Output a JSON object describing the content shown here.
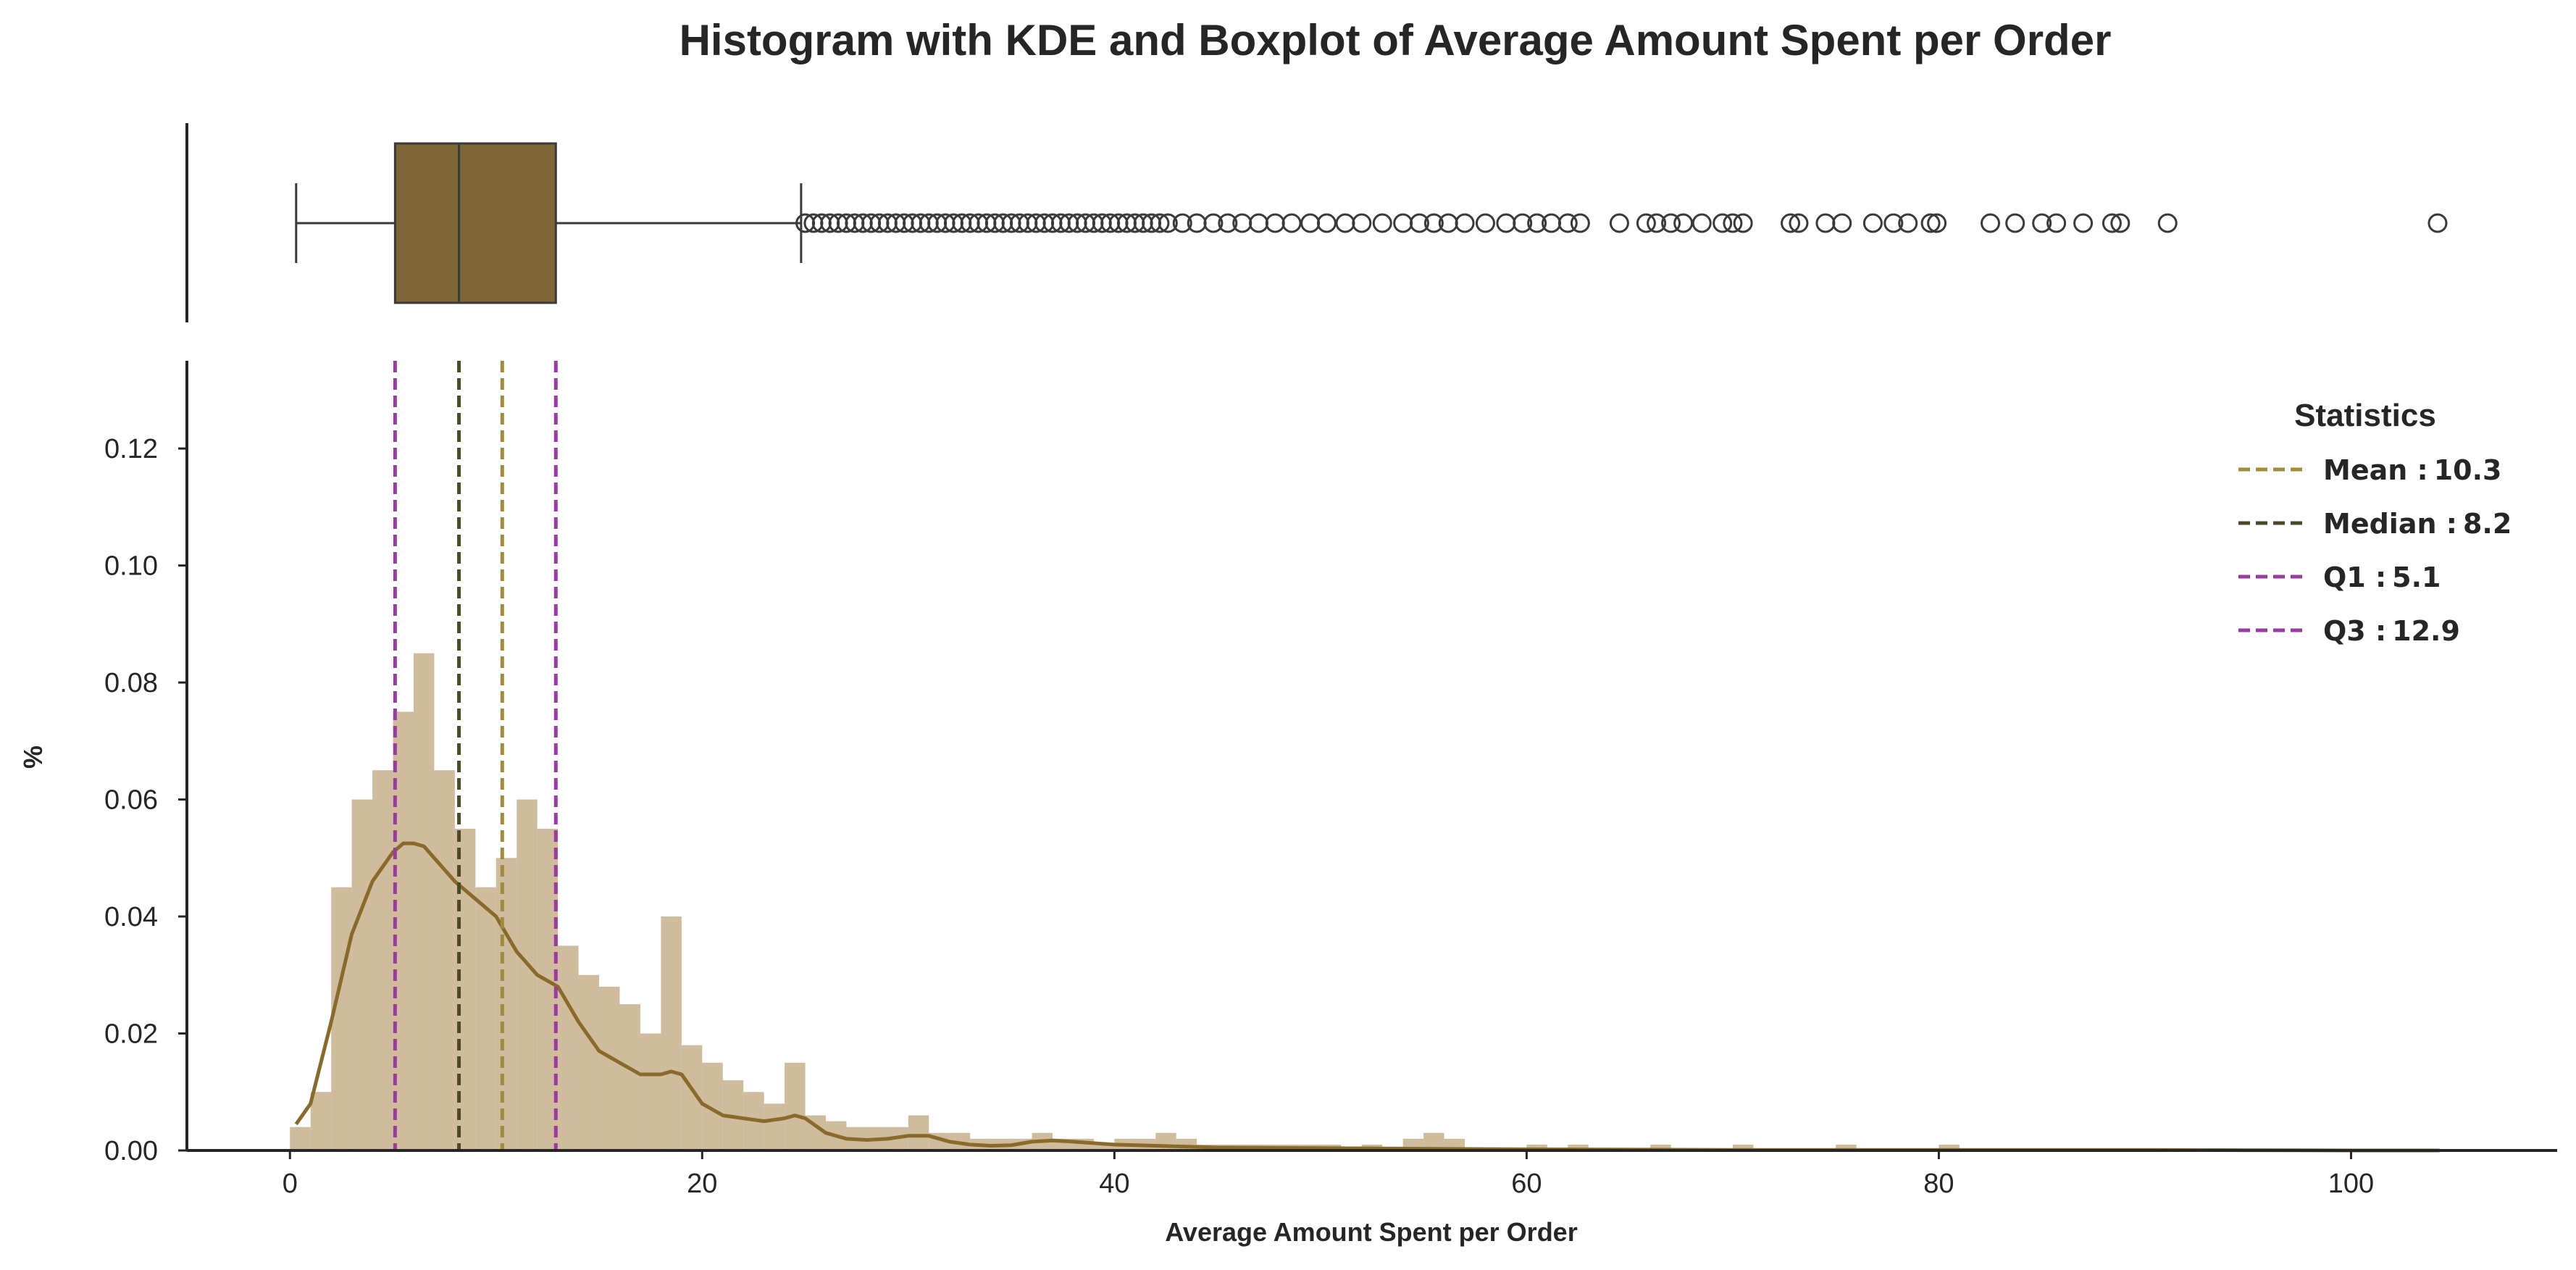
{
  "chart_data": {
    "type": "histogram",
    "title": "Histogram with KDE and Boxplot of Average Amount Spent per Order",
    "xlabel": "Average Amount Spent per Order",
    "ylabel": "%",
    "xlim": [
      -5,
      110
    ],
    "ylim": [
      0,
      0.135
    ],
    "x_ticks": [
      0,
      20,
      40,
      60,
      80,
      100
    ],
    "y_ticks": [
      0.0,
      0.02,
      0.04,
      0.06,
      0.08,
      0.1,
      0.12
    ],
    "grid": false,
    "colors": {
      "bars": "#c2ab85",
      "kde": "#8a6a2a",
      "box_fill": "#7e6638",
      "box_line": "#3a3a3a",
      "mean_line": "#a08a3c",
      "median_line": "#4a4a2a",
      "q1_line": "#9b3aa0",
      "q3_line": "#9b3aa0",
      "axis": "#262626"
    },
    "histogram": {
      "x": [
        0.5,
        1.5,
        2.5,
        3.5,
        4.5,
        5.5,
        6.5,
        7.5,
        8.5,
        9.5,
        10.5,
        11.5,
        12.5,
        13.5,
        14.5,
        15.5,
        16.5,
        17.5,
        18.5,
        19.5,
        20.5,
        21.5,
        22.5,
        23.5,
        24.5,
        25.5,
        26.5,
        27.5,
        28.5,
        29.5,
        30.5,
        31.5,
        32.5,
        33.5,
        34.5,
        35.5,
        36.5,
        37.5,
        38.5,
        39.5,
        40.5,
        41.5,
        42.5,
        43.5,
        44.5,
        45.5,
        46.5,
        47.5,
        48.5,
        49.5,
        50.5,
        52.5,
        54.5,
        55.5,
        56.5,
        60.5,
        62.5,
        66.5,
        70.5,
        75.5,
        80.5
      ],
      "values": [
        0.004,
        0.01,
        0.045,
        0.06,
        0.065,
        0.075,
        0.085,
        0.065,
        0.055,
        0.045,
        0.05,
        0.06,
        0.055,
        0.035,
        0.03,
        0.028,
        0.025,
        0.02,
        0.04,
        0.018,
        0.015,
        0.012,
        0.01,
        0.008,
        0.015,
        0.006,
        0.005,
        0.004,
        0.004,
        0.004,
        0.006,
        0.003,
        0.003,
        0.002,
        0.002,
        0.002,
        0.003,
        0.002,
        0.002,
        0.001,
        0.002,
        0.002,
        0.003,
        0.002,
        0.001,
        0.001,
        0.001,
        0.001,
        0.001,
        0.001,
        0.001,
        0.001,
        0.002,
        0.003,
        0.002,
        0.001,
        0.001,
        0.001,
        0.001,
        0.001,
        0.001
      ]
    },
    "kde": {
      "x": [
        0.3,
        1,
        2,
        3,
        4,
        5,
        5.5,
        6,
        6.5,
        7,
        8,
        9,
        10,
        11,
        12,
        13,
        14,
        15,
        16,
        17,
        18,
        18.5,
        19,
        20,
        21,
        22,
        23,
        24,
        24.5,
        25,
        26,
        27,
        28,
        29,
        30,
        31,
        32,
        33,
        34,
        35,
        36,
        37,
        38,
        40,
        42,
        45,
        50,
        55,
        60,
        70,
        80,
        90,
        100,
        104.3
      ],
      "values": [
        0.0045,
        0.008,
        0.022,
        0.037,
        0.046,
        0.051,
        0.0525,
        0.0525,
        0.052,
        0.05,
        0.046,
        0.043,
        0.04,
        0.034,
        0.03,
        0.028,
        0.022,
        0.017,
        0.015,
        0.013,
        0.013,
        0.0135,
        0.013,
        0.008,
        0.006,
        0.0055,
        0.005,
        0.0055,
        0.006,
        0.0055,
        0.003,
        0.002,
        0.0018,
        0.002,
        0.0025,
        0.0025,
        0.0015,
        0.001,
        0.0008,
        0.0009,
        0.0015,
        0.0017,
        0.0015,
        0.001,
        0.0008,
        0.0005,
        0.0004,
        0.0003,
        0.0002,
        0.0001,
        0.0001,
        0.0001,
        0.0,
        0.0
      ]
    },
    "boxplot": {
      "whisker_low": 0.3,
      "q1": 5.1,
      "median": 8.2,
      "q3": 12.9,
      "whisker_high": 24.8,
      "outliers": [
        25,
        25.4,
        25.8,
        26.2,
        26.6,
        27,
        27.4,
        27.8,
        28.2,
        28.6,
        29,
        29.4,
        29.8,
        30.2,
        30.6,
        31,
        31.4,
        31.8,
        32.2,
        32.6,
        33,
        33.4,
        33.8,
        34.2,
        34.6,
        35,
        35.4,
        35.8,
        36.2,
        36.6,
        37,
        37.4,
        37.8,
        38.2,
        38.6,
        39,
        39.4,
        39.8,
        40.2,
        40.6,
        41,
        41.4,
        41.8,
        42.2,
        42.6,
        43.3,
        44,
        44.8,
        45.5,
        46.2,
        47,
        47.8,
        48.6,
        49.5,
        50.3,
        51.2,
        52,
        53,
        54,
        54.8,
        55.5,
        56.2,
        57,
        58,
        59,
        59.8,
        60.5,
        61.2,
        62,
        62.6,
        64.5,
        65.8,
        66.3,
        67,
        67.6,
        68.5,
        69.5,
        70,
        70.5,
        72.8,
        73.2,
        74.5,
        75.3,
        76.8,
        77.8,
        78.5,
        79.6,
        79.9,
        82.5,
        83.7,
        85,
        85.7,
        87,
        88.4,
        88.8,
        91.1,
        104.2
      ]
    },
    "reference_lines": [
      {
        "name": "Mean",
        "value": 10.3,
        "label": "Mean :",
        "display": "10.3"
      },
      {
        "name": "Median",
        "value": 8.2,
        "label": "Median :",
        "display": "8.2"
      },
      {
        "name": "Q1",
        "value": 5.1,
        "label": "Q1 :",
        "display": "5.1"
      },
      {
        "name": "Q3",
        "value": 12.9,
        "label": "Q3 :",
        "display": "12.9"
      }
    ],
    "legend": {
      "title": "Statistics",
      "placement": "top-right"
    }
  }
}
